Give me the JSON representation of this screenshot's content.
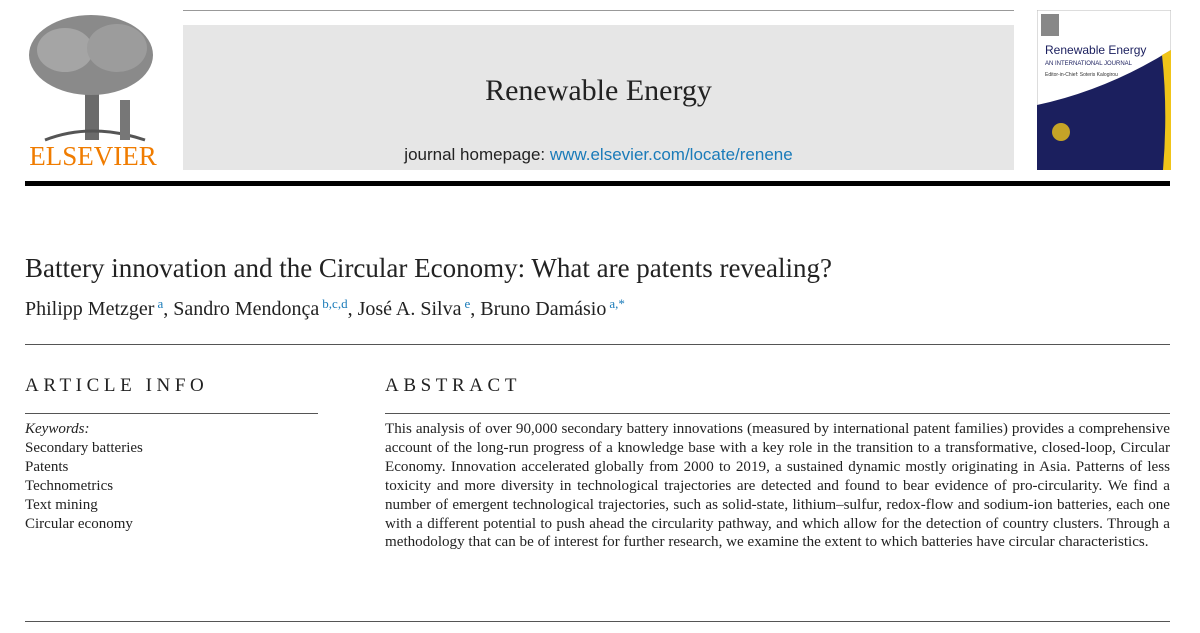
{
  "publisher": {
    "logo_text": "ELSEVIER"
  },
  "header": {
    "journal": "Renewable Energy",
    "homepage_label": "journal homepage:",
    "homepage_url": "www.elsevier.com/locate/renene"
  },
  "cover": {
    "title": "Renewable Energy",
    "subtitle": "AN INTERNATIONAL JOURNAL",
    "editor": "Editor-in-Chief: Soteris Kalogirou"
  },
  "article": {
    "title": "Battery innovation and the Circular Economy: What are patents revealing?",
    "author_separator": ",",
    "authors": [
      {
        "name": "Philipp Metzger",
        "affiliations": "a"
      },
      {
        "name": "Sandro Mendonça",
        "affiliations": "b,c,d"
      },
      {
        "name": "José A. Silva",
        "affiliations": "e"
      },
      {
        "name": "Bruno Damásio",
        "affiliations": "a,*"
      }
    ]
  },
  "article_info": {
    "heading": "ARTICLE INFO",
    "keywords_label": "Keywords:",
    "keywords": [
      "Secondary batteries",
      "Patents",
      "Technometrics",
      "Text mining",
      "Circular economy"
    ]
  },
  "abstract": {
    "heading": "ABSTRACT",
    "text": "This analysis of over 90,000 secondary battery innovations (measured by international patent families) provides a comprehensive account of the long-run progress of a knowledge base with a key role in the transition to a transformative, closed-loop, Circular Economy. Innovation accelerated globally from 2000 to 2019, a sustained dynamic mostly originating in Asia. Patterns of less toxicity and more diversity in technological trajectories are detected and found to bear evidence of pro-circularity. We find a number of emergent technological trajectories, such as solid-state, lithium–sulfur, redox-flow and sodium-ion batteries, each one with a different potential to push ahead the circularity pathway, and which allow for the detection of country clusters. Through a methodology that can be of interest for further research, we examine the extent to which batteries have circular characteristics."
  }
}
